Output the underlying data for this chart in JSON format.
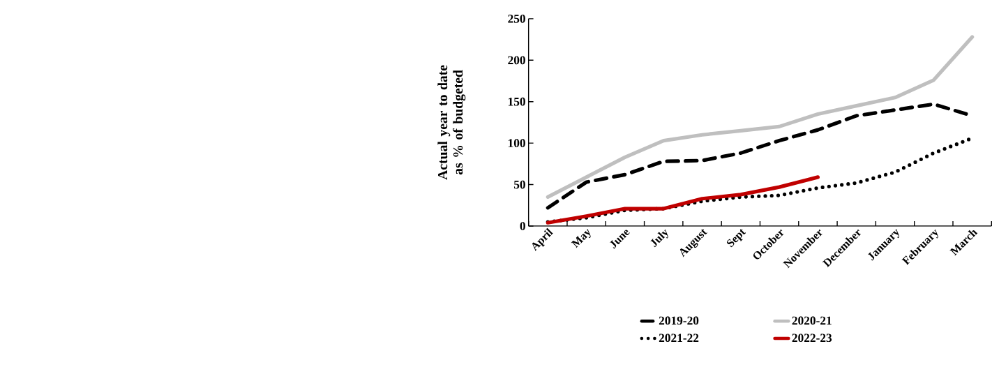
{
  "chart_data": {
    "type": "line",
    "ylabel": "Actual year to date as % of budgeted",
    "categories": [
      "April",
      "May",
      "June",
      "July",
      "August",
      "Sept",
      "October",
      "November",
      "December",
      "January",
      "February",
      "March"
    ],
    "series": [
      {
        "name": "2019-20",
        "color": "#000000",
        "line_style": "dashed",
        "values": [
          22,
          53,
          62,
          78,
          79,
          88,
          103,
          116,
          133,
          140,
          147,
          133
        ]
      },
      {
        "name": "2020-21",
        "color": "#bfbfbf",
        "line_style": "solid",
        "values": [
          35,
          59,
          83,
          103,
          110,
          115,
          120,
          135,
          145,
          155,
          176,
          228
        ]
      },
      {
        "name": "2021-22",
        "color": "#000000",
        "line_style": "dotted",
        "values": [
          5,
          10,
          19,
          21,
          30,
          35,
          37,
          46,
          52,
          65,
          88,
          106
        ]
      },
      {
        "name": "2022-23",
        "color": "#c00000",
        "line_style": "solid",
        "values": [
          4,
          12,
          21,
          21,
          33,
          38,
          47,
          59,
          null,
          null,
          null,
          null
        ]
      }
    ],
    "ylim": [
      0,
      250
    ],
    "yticks": [
      0,
      50,
      100,
      150,
      200,
      250
    ],
    "grid": false,
    "legend": "bottom",
    "marker": "none"
  }
}
